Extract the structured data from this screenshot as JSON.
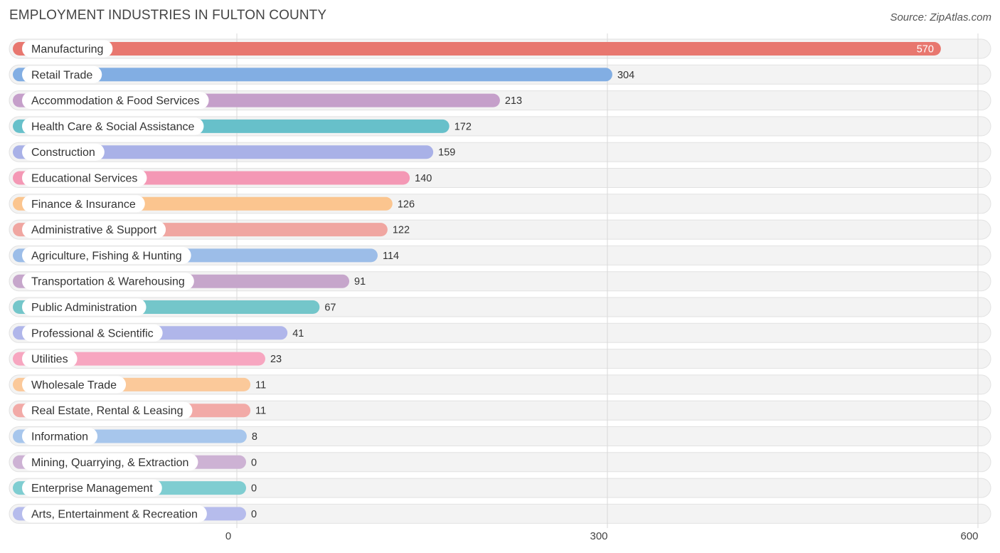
{
  "header": {
    "title": "EMPLOYMENT INDUSTRIES IN FULTON COUNTY",
    "source": "Source: ZipAtlas.com"
  },
  "chart_data": {
    "type": "bar",
    "orientation": "horizontal",
    "title": "EMPLOYMENT INDUSTRIES IN FULTON COUNTY",
    "xlabel": "",
    "ylabel": "",
    "xlim": [
      0,
      600
    ],
    "xticks": [
      0,
      300,
      600
    ],
    "xtick_labels": [
      "0",
      "300",
      "600"
    ],
    "grid": true,
    "categories": [
      "Manufacturing",
      "Retail Trade",
      "Accommodation & Food Services",
      "Health Care & Social Assistance",
      "Construction",
      "Educational Services",
      "Finance & Insurance",
      "Administrative & Support",
      "Agriculture, Fishing & Hunting",
      "Transportation & Warehousing",
      "Public Administration",
      "Professional & Scientific",
      "Utilities",
      "Wholesale Trade",
      "Real Estate, Rental & Leasing",
      "Information",
      "Mining, Quarrying, & Extraction",
      "Enterprise Management",
      "Arts, Entertainment & Recreation"
    ],
    "values": [
      570,
      304,
      213,
      172,
      159,
      140,
      126,
      122,
      114,
      91,
      67,
      41,
      23,
      11,
      11,
      8,
      0,
      0,
      0
    ],
    "value_labels": [
      "570",
      "304",
      "213",
      "172",
      "159",
      "140",
      "126",
      "122",
      "114",
      "91",
      "67",
      "41",
      "23",
      "11",
      "11",
      "8",
      "0",
      "0",
      "0"
    ],
    "colors": [
      "#e8776f",
      "#82aee3",
      "#c59fca",
      "#67c0ca",
      "#a9b1e7",
      "#f498b5",
      "#fbc58f",
      "#f0a6a1",
      "#9cbde8",
      "#c6a6cb",
      "#74c6ca",
      "#b0b6ea",
      "#f7a6c0",
      "#fbc99a",
      "#f2aaa7",
      "#a7c6ec",
      "#cdb2d4",
      "#7fcdd1",
      "#b6bcec"
    ]
  }
}
